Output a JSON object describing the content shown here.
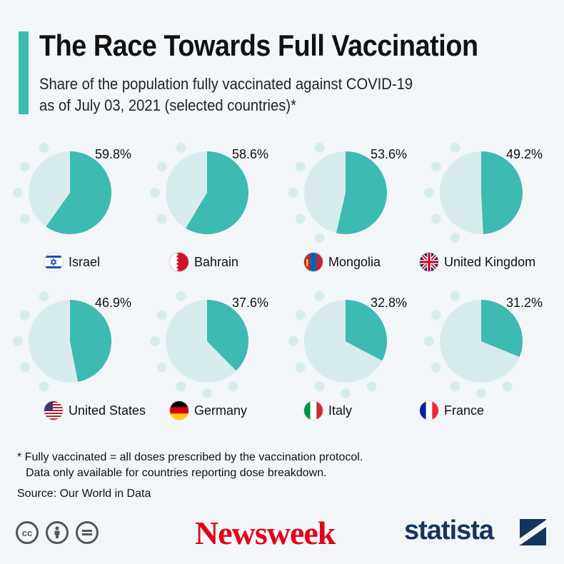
{
  "header": {
    "title": "The Race Towards Full Vaccination",
    "subtitle_line1": "Share of the population fully vaccinated against COVID-19",
    "subtitle_line2": "as of July 03, 2021 (selected countries)*"
  },
  "colors": {
    "accent": "#3dbab1",
    "pie_rest": "#d8ecee",
    "dots": "#d8ecee",
    "newsweek_red": "#e4001b",
    "statista_navy": "#14365c"
  },
  "chart_data": {
    "type": "pie",
    "title": "The Race Towards Full Vaccination",
    "unit": "%",
    "series": [
      {
        "name": "Israel",
        "value": 59.8,
        "label": "59.8%",
        "flag": "israel-flag"
      },
      {
        "name": "Bahrain",
        "value": 58.6,
        "label": "58.6%",
        "flag": "bahrain-flag"
      },
      {
        "name": "Mongolia",
        "value": 53.6,
        "label": "53.6%",
        "flag": "mongolia-flag"
      },
      {
        "name": "United Kingdom",
        "value": 49.2,
        "label": "49.2%",
        "flag": "uk-flag"
      },
      {
        "name": "United States",
        "value": 46.9,
        "label": "46.9%",
        "flag": "us-flag"
      },
      {
        "name": "Germany",
        "value": 37.6,
        "label": "37.6%",
        "flag": "germany-flag"
      },
      {
        "name": "Italy",
        "value": 32.8,
        "label": "32.8%",
        "flag": "italy-flag"
      },
      {
        "name": "France",
        "value": 31.2,
        "label": "31.2%",
        "flag": "france-flag"
      }
    ]
  },
  "footer": {
    "note_line1": "* Fully vaccinated = all doses prescribed by the vaccination protocol.",
    "note_line2": "Data only available for countries reporting dose breakdown.",
    "source": "Source: Our World in Data",
    "cc_icons": [
      "creative-commons-icon",
      "attribution-icon",
      "no-derivatives-icon"
    ],
    "newsweek_logo": "Newsweek",
    "statista_logo": "statista"
  }
}
